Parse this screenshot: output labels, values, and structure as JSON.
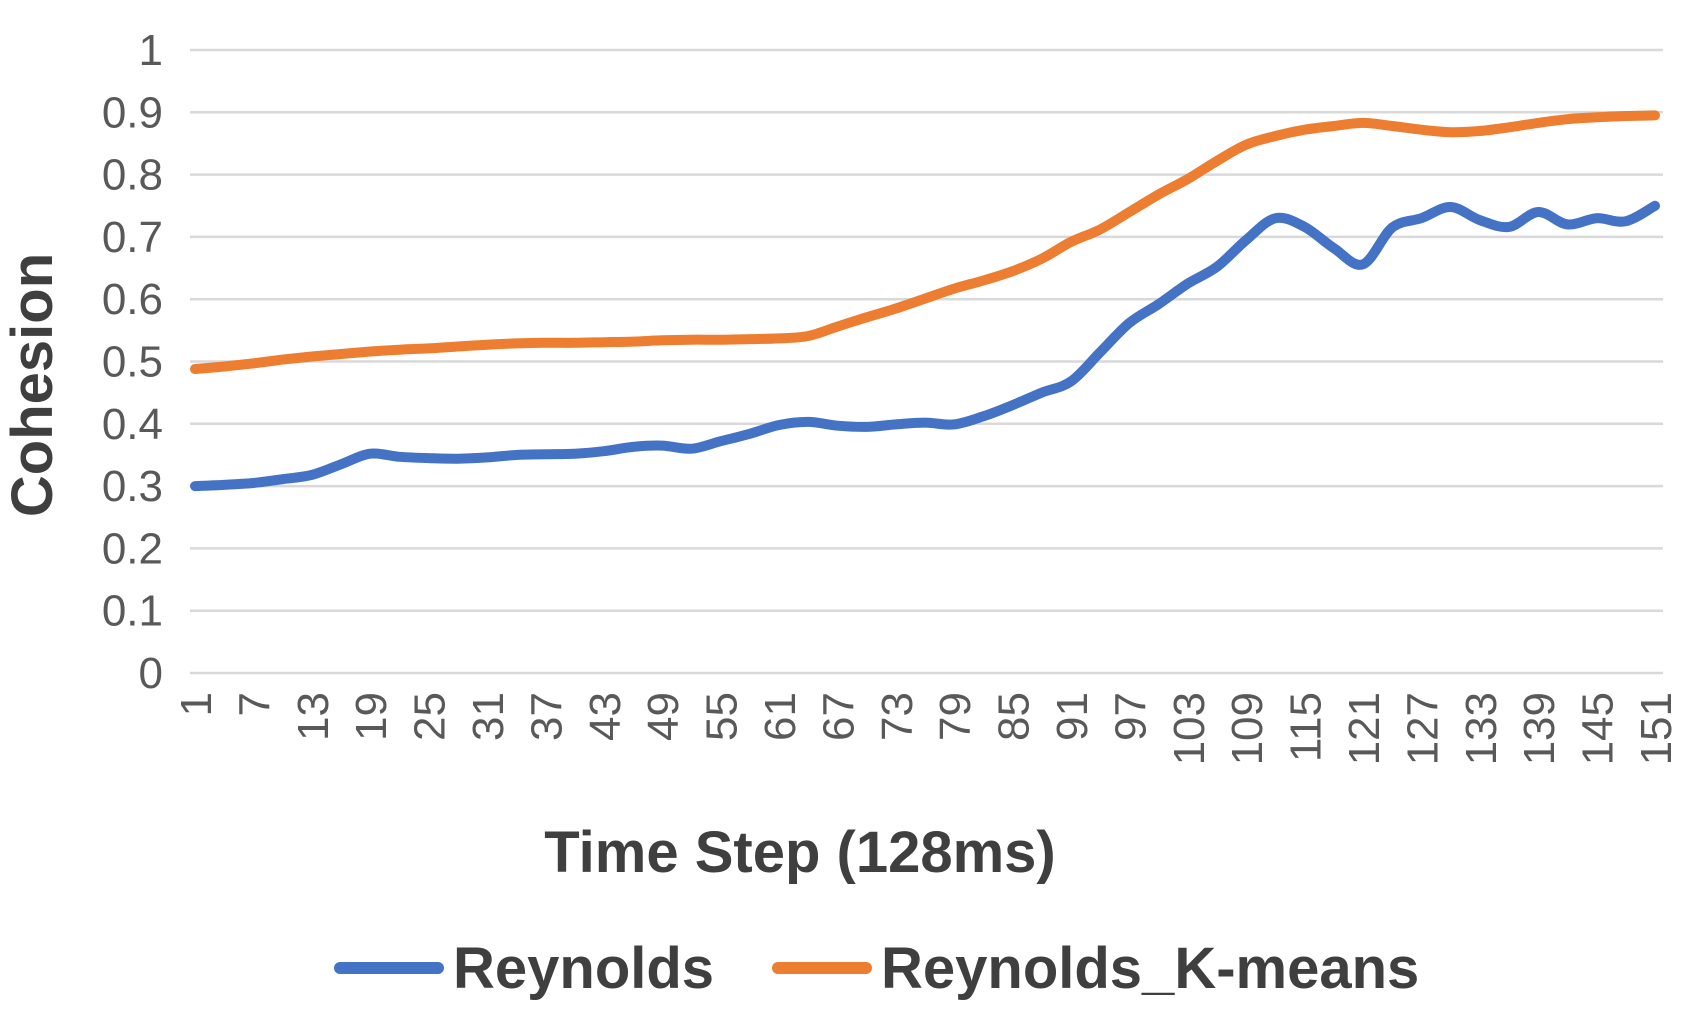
{
  "chart_data": {
    "type": "line",
    "title": "",
    "xlabel": "Time Step (128ms)",
    "ylabel": "Cohesion",
    "grid": "horizontal",
    "grid_color": "#d9d9d9",
    "tick_text_color": "#595959",
    "title_text_color": "#3f3f3f",
    "legend_position": "bottom",
    "xlim": [
      1,
      151
    ],
    "ylim": [
      0,
      1
    ],
    "y_ticks": [
      {
        "value": 0,
        "label": "0"
      },
      {
        "value": 0.1,
        "label": "0.1"
      },
      {
        "value": 0.2,
        "label": "0.2"
      },
      {
        "value": 0.3,
        "label": "0.3"
      },
      {
        "value": 0.4,
        "label": "0.4"
      },
      {
        "value": 0.5,
        "label": "0.5"
      },
      {
        "value": 0.6,
        "label": "0.6"
      },
      {
        "value": 0.7,
        "label": "0.7"
      },
      {
        "value": 0.8,
        "label": "0.8"
      },
      {
        "value": 0.9,
        "label": "0.9"
      },
      {
        "value": 1,
        "label": "1"
      }
    ],
    "x_tick_labels": [
      1,
      7,
      13,
      19,
      25,
      31,
      37,
      43,
      49,
      55,
      61,
      67,
      73,
      79,
      85,
      91,
      97,
      103,
      109,
      115,
      121,
      127,
      133,
      139,
      145,
      151
    ],
    "x": [
      1,
      4,
      7,
      10,
      13,
      16,
      19,
      22,
      25,
      28,
      31,
      34,
      37,
      40,
      43,
      46,
      49,
      52,
      55,
      58,
      61,
      64,
      67,
      70,
      73,
      76,
      79,
      82,
      85,
      88,
      91,
      94,
      97,
      100,
      103,
      106,
      109,
      112,
      115,
      118,
      121,
      124,
      127,
      130,
      133,
      136,
      139,
      142,
      145,
      148,
      151
    ],
    "series": [
      {
        "name": "Reynolds",
        "color": "#4472c4",
        "values": [
          0.3,
          0.302,
          0.305,
          0.311,
          0.318,
          0.335,
          0.352,
          0.347,
          0.345,
          0.344,
          0.346,
          0.35,
          0.351,
          0.352,
          0.356,
          0.363,
          0.365,
          0.36,
          0.372,
          0.384,
          0.398,
          0.403,
          0.397,
          0.395,
          0.399,
          0.402,
          0.399,
          0.412,
          0.43,
          0.45,
          0.468,
          0.515,
          0.562,
          0.592,
          0.625,
          0.652,
          0.695,
          0.73,
          0.716,
          0.682,
          0.656,
          0.715,
          0.73,
          0.748,
          0.727,
          0.716,
          0.74,
          0.72,
          0.73,
          0.725,
          0.75
        ]
      },
      {
        "name": "Reynolds_K-means",
        "color": "#ed7d31",
        "values": [
          0.488,
          0.492,
          0.497,
          0.503,
          0.508,
          0.512,
          0.516,
          0.519,
          0.521,
          0.524,
          0.527,
          0.529,
          0.53,
          0.53,
          0.531,
          0.532,
          0.534,
          0.535,
          0.535,
          0.536,
          0.537,
          0.541,
          0.556,
          0.571,
          0.585,
          0.601,
          0.617,
          0.63,
          0.645,
          0.665,
          0.692,
          0.712,
          0.74,
          0.768,
          0.793,
          0.822,
          0.848,
          0.862,
          0.872,
          0.878,
          0.883,
          0.878,
          0.872,
          0.868,
          0.87,
          0.876,
          0.883,
          0.889,
          0.892,
          0.894,
          0.895
        ]
      }
    ]
  }
}
